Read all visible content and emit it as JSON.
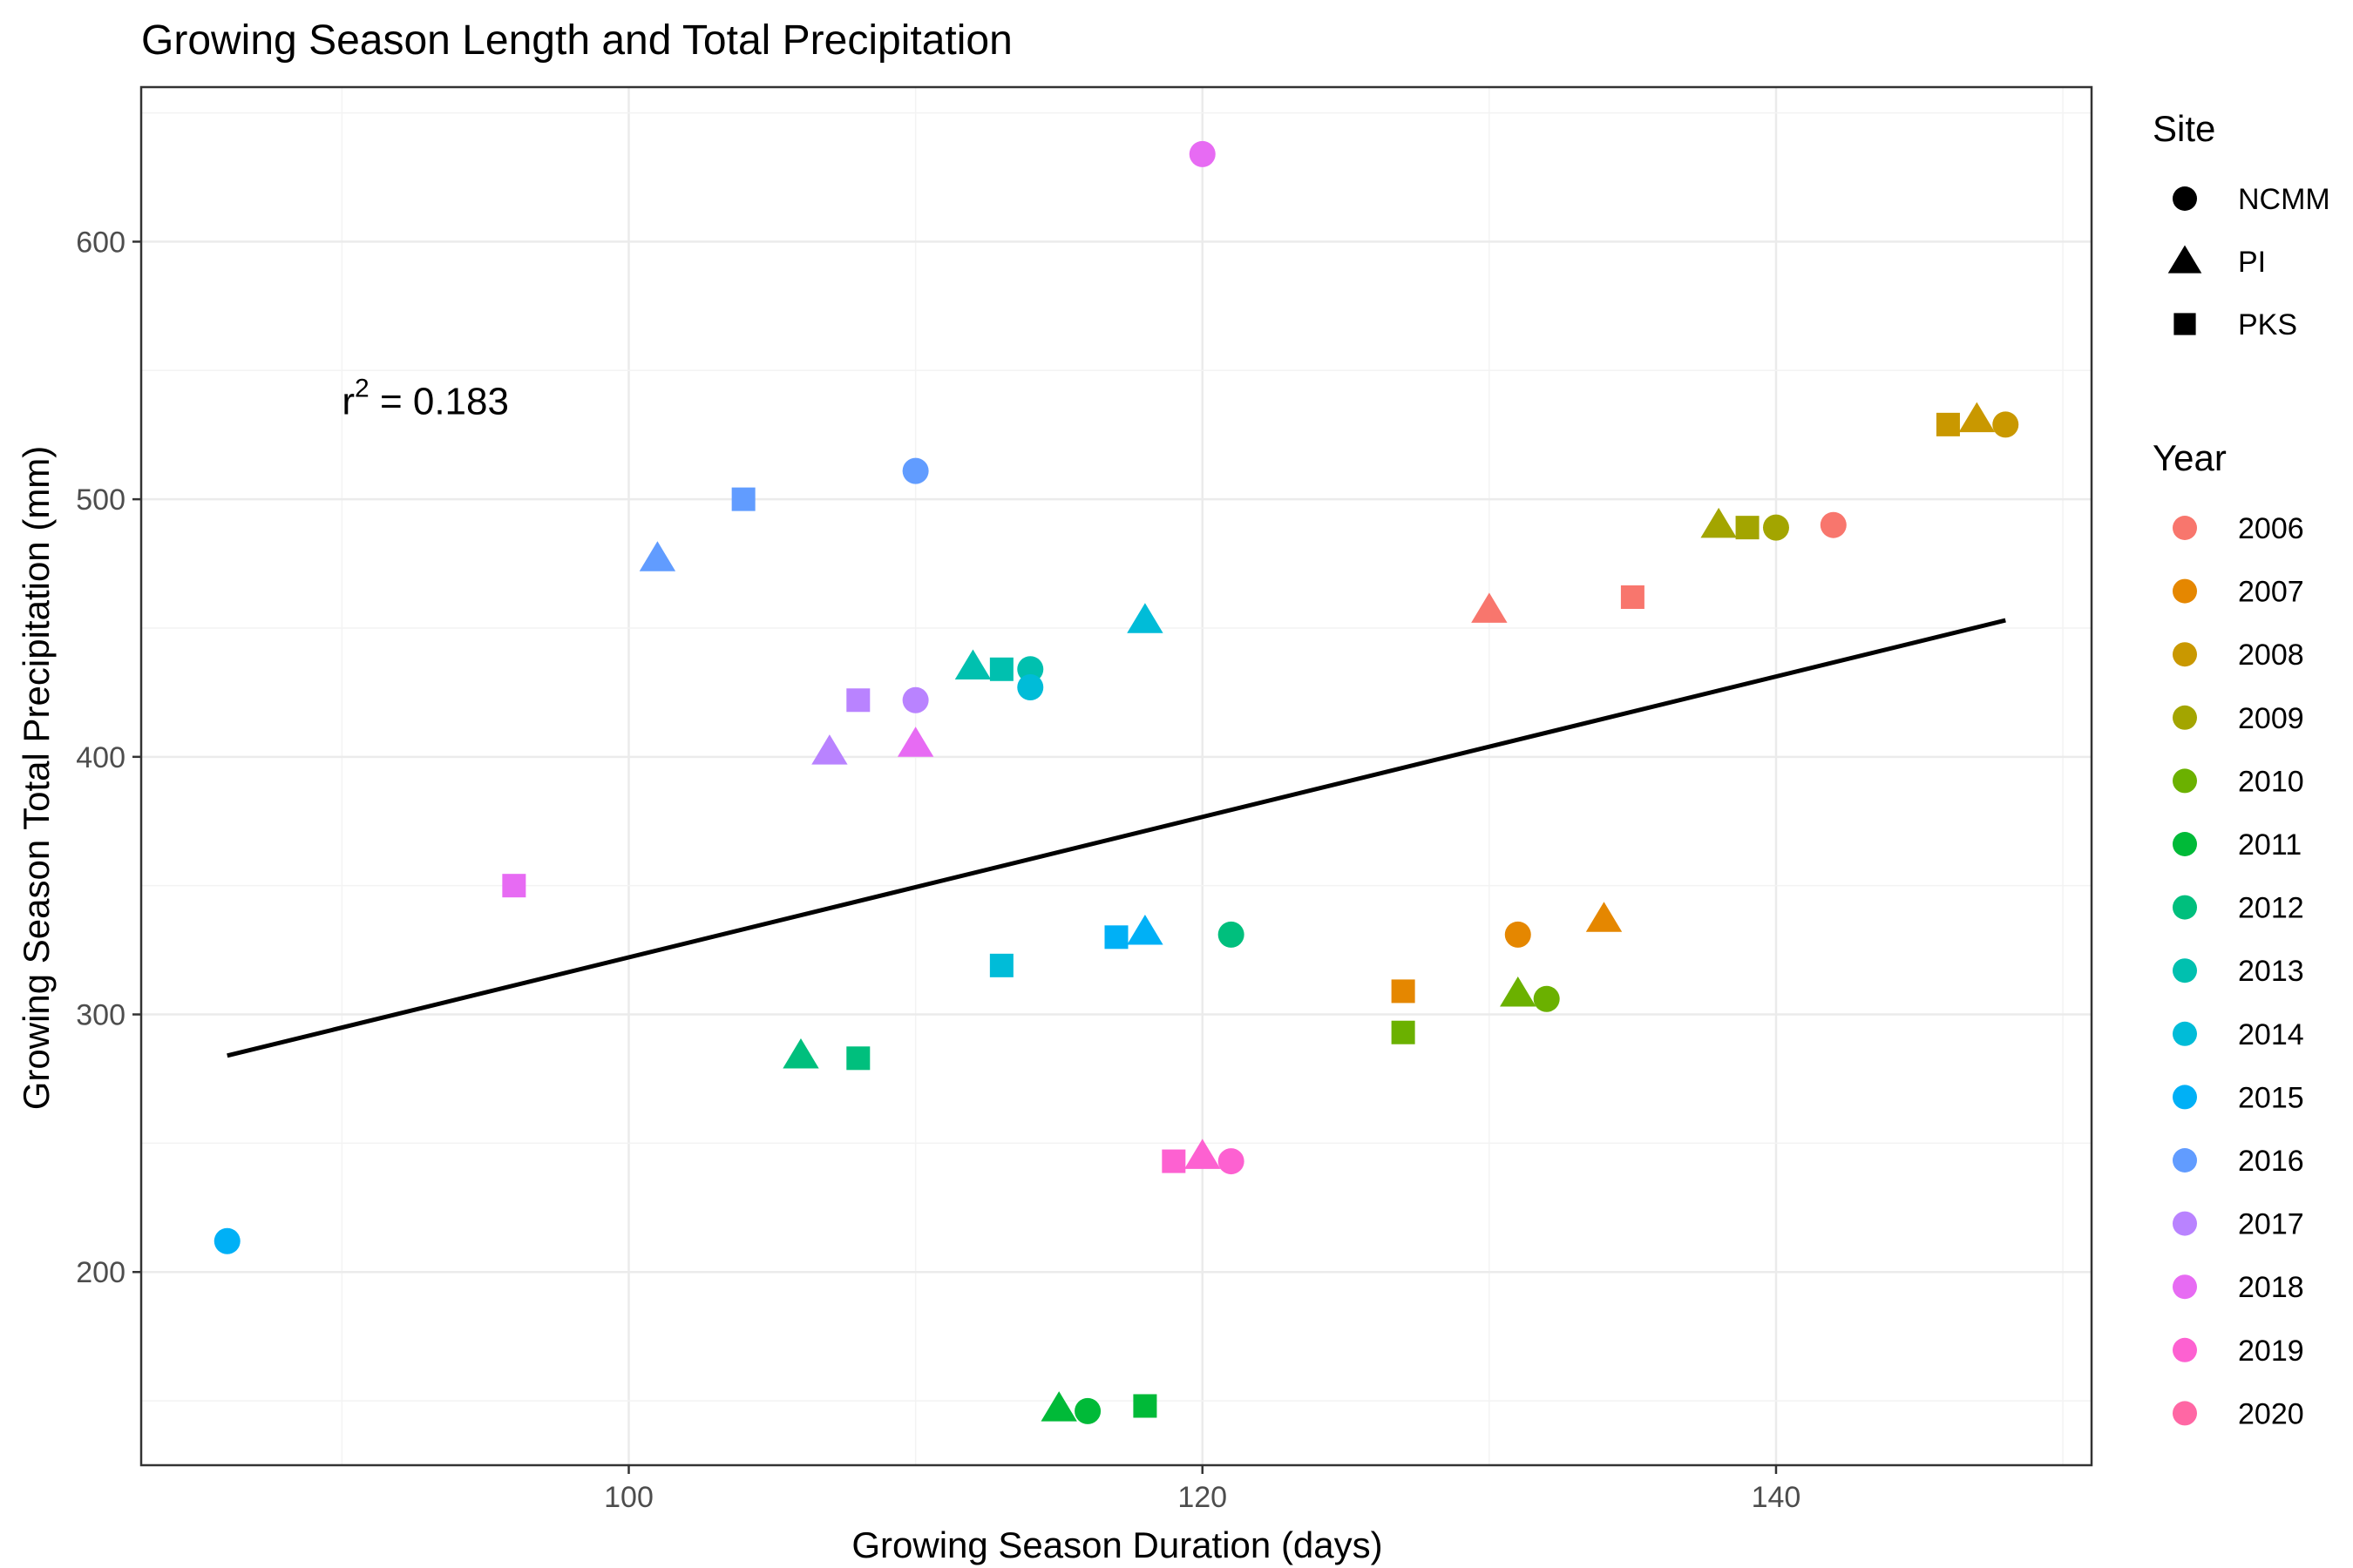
{
  "chart_data": {
    "type": "scatter",
    "title": "Growing Season Length and Total Precipitation",
    "xlabel": "Growing Season Duration (days)",
    "ylabel": "Growing Season Total Precipitation (mm)",
    "xlim": [
      83,
      151
    ],
    "ylim": [
      125,
      660
    ],
    "x_ticks": [
      100,
      120,
      140
    ],
    "y_ticks": [
      200,
      300,
      400,
      500,
      600
    ],
    "grid": true,
    "annotation": {
      "base": "r",
      "sup": "2",
      "text": " = 0.183",
      "x": 90,
      "y": 533
    },
    "trendline": {
      "x": [
        86,
        148
      ],
      "y": [
        284,
        453
      ]
    },
    "legend_site": {
      "title": "Site",
      "entries": [
        {
          "label": "NCMM",
          "shape": "circle"
        },
        {
          "label": "PI",
          "shape": "triangle"
        },
        {
          "label": "PKS",
          "shape": "square"
        }
      ]
    },
    "legend_year": {
      "title": "Year",
      "entries": [
        {
          "label": "2006",
          "color": "#F8766D"
        },
        {
          "label": "2007",
          "color": "#E58700"
        },
        {
          "label": "2008",
          "color": "#C99800"
        },
        {
          "label": "2009",
          "color": "#A3A500"
        },
        {
          "label": "2010",
          "color": "#6BB100"
        },
        {
          "label": "2011",
          "color": "#00BA38"
        },
        {
          "label": "2012",
          "color": "#00BF7D"
        },
        {
          "label": "2013",
          "color": "#00C0AF"
        },
        {
          "label": "2014",
          "color": "#00BCD8"
        },
        {
          "label": "2015",
          "color": "#00B0F6"
        },
        {
          "label": "2016",
          "color": "#619CFF"
        },
        {
          "label": "2017",
          "color": "#B983FF"
        },
        {
          "label": "2018",
          "color": "#E76BF3"
        },
        {
          "label": "2019",
          "color": "#FD61D1"
        },
        {
          "label": "2020",
          "color": "#FF67A4"
        }
      ]
    },
    "points": [
      {
        "site": "NCMM",
        "year": "2006",
        "x": 142,
        "y": 490
      },
      {
        "site": "PI",
        "year": "2006",
        "x": 130,
        "y": 457
      },
      {
        "site": "PKS",
        "year": "2006",
        "x": 135,
        "y": 462
      },
      {
        "site": "NCMM",
        "year": "2007",
        "x": 131,
        "y": 331
      },
      {
        "site": "PI",
        "year": "2007",
        "x": 134,
        "y": 337
      },
      {
        "site": "PKS",
        "year": "2007",
        "x": 127,
        "y": 309
      },
      {
        "site": "NCMM",
        "year": "2008",
        "x": 148,
        "y": 529
      },
      {
        "site": "PI",
        "year": "2008",
        "x": 147,
        "y": 531
      },
      {
        "site": "PKS",
        "year": "2008",
        "x": 146,
        "y": 529
      },
      {
        "site": "NCMM",
        "year": "2009",
        "x": 140,
        "y": 489
      },
      {
        "site": "PI",
        "year": "2009",
        "x": 138,
        "y": 490
      },
      {
        "site": "PKS",
        "year": "2009",
        "x": 139,
        "y": 489
      },
      {
        "site": "NCMM",
        "year": "2010",
        "x": 132,
        "y": 306
      },
      {
        "site": "PI",
        "year": "2010",
        "x": 131,
        "y": 308
      },
      {
        "site": "PKS",
        "year": "2010",
        "x": 127,
        "y": 293
      },
      {
        "site": "NCMM",
        "year": "2011",
        "x": 116,
        "y": 146
      },
      {
        "site": "PI",
        "year": "2011",
        "x": 115,
        "y": 147
      },
      {
        "site": "PKS",
        "year": "2011",
        "x": 118,
        "y": 148
      },
      {
        "site": "NCMM",
        "year": "2012",
        "x": 121,
        "y": 331
      },
      {
        "site": "PI",
        "year": "2012",
        "x": 106,
        "y": 284
      },
      {
        "site": "PKS",
        "year": "2012",
        "x": 108,
        "y": 283
      },
      {
        "site": "NCMM",
        "year": "2013",
        "x": 114,
        "y": 434
      },
      {
        "site": "PI",
        "year": "2013",
        "x": 112,
        "y": 435
      },
      {
        "site": "PKS",
        "year": "2013",
        "x": 113,
        "y": 434
      },
      {
        "site": "NCMM",
        "year": "2014",
        "x": 114,
        "y": 427
      },
      {
        "site": "PI",
        "year": "2014",
        "x": 118,
        "y": 453
      },
      {
        "site": "PKS",
        "year": "2014",
        "x": 113,
        "y": 319
      },
      {
        "site": "NCMM",
        "year": "2015",
        "x": 86,
        "y": 212
      },
      {
        "site": "PI",
        "year": "2015",
        "x": 118,
        "y": 332
      },
      {
        "site": "PKS",
        "year": "2015",
        "x": 117,
        "y": 330
      },
      {
        "site": "NCMM",
        "year": "2016",
        "x": 110,
        "y": 511
      },
      {
        "site": "PI",
        "year": "2016",
        "x": 101,
        "y": 477
      },
      {
        "site": "PKS",
        "year": "2016",
        "x": 104,
        "y": 500
      },
      {
        "site": "NCMM",
        "year": "2017",
        "x": 110,
        "y": 422
      },
      {
        "site": "PI",
        "year": "2017",
        "x": 107,
        "y": 402
      },
      {
        "site": "PKS",
        "year": "2017",
        "x": 108,
        "y": 422
      },
      {
        "site": "NCMM",
        "year": "2018",
        "x": 120,
        "y": 634
      },
      {
        "site": "PI",
        "year": "2018",
        "x": 110,
        "y": 405
      },
      {
        "site": "PKS",
        "year": "2018",
        "x": 96,
        "y": 350
      },
      {
        "site": "NCMM",
        "year": "2019",
        "x": 121,
        "y": 243
      },
      {
        "site": "PI",
        "year": "2019",
        "x": 120,
        "y": 245
      },
      {
        "site": "PKS",
        "year": "2019",
        "x": 119,
        "y": 243
      }
    ]
  }
}
